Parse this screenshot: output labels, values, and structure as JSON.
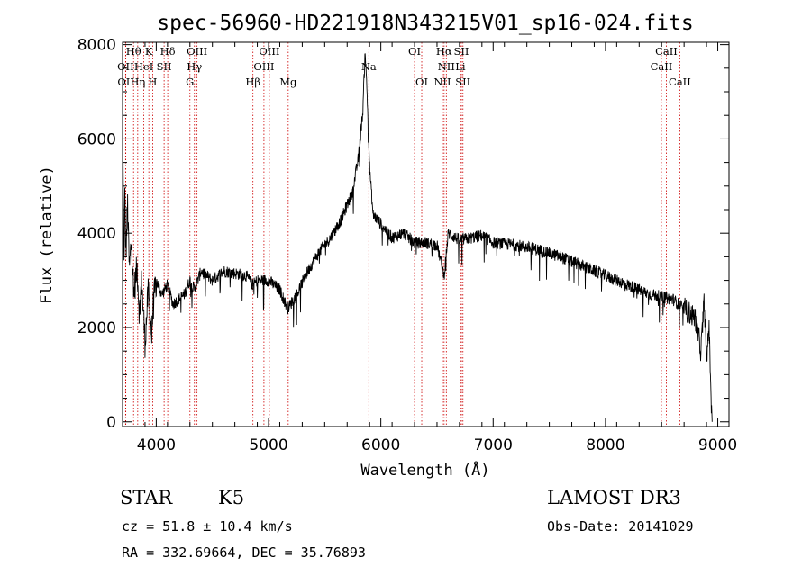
{
  "chart_data": {
    "type": "line",
    "title": "spec-56960-HD221918N343215V01_sp16-024.fits",
    "xlabel": "Wavelength (Å)",
    "ylabel": "Flux (relative)",
    "xlim": [
      3700,
      9100
    ],
    "ylim": [
      -100,
      8050
    ],
    "x_ticks": [
      4000,
      5000,
      6000,
      7000,
      8000,
      9000
    ],
    "x_tick_labels": [
      "4000",
      "5000",
      "6000",
      "7000",
      "8000",
      "9000"
    ],
    "y_ticks": [
      0,
      2000,
      4000,
      6000,
      8000
    ],
    "y_tick_labels": [
      "0",
      "2000",
      "4000",
      "6000",
      "8000"
    ],
    "series": [
      {
        "name": "flux",
        "anchors": [
          [
            3700,
            0
          ],
          [
            3705,
            5500
          ],
          [
            3712,
            3200
          ],
          [
            3720,
            4800
          ],
          [
            3730,
            3600
          ],
          [
            3745,
            4600
          ],
          [
            3760,
            3200
          ],
          [
            3780,
            3900
          ],
          [
            3800,
            2700
          ],
          [
            3830,
            3300
          ],
          [
            3850,
            2300
          ],
          [
            3870,
            3000
          ],
          [
            3900,
            1700
          ],
          [
            3930,
            2800
          ],
          [
            3960,
            1800
          ],
          [
            3970,
            2400
          ],
          [
            4000,
            3000
          ],
          [
            4050,
            2700
          ],
          [
            4100,
            2900
          ],
          [
            4150,
            2500
          ],
          [
            4200,
            2600
          ],
          [
            4250,
            2700
          ],
          [
            4300,
            3000
          ],
          [
            4340,
            2800
          ],
          [
            4400,
            3200
          ],
          [
            4500,
            3000
          ],
          [
            4600,
            3200
          ],
          [
            4700,
            3150
          ],
          [
            4800,
            3100
          ],
          [
            4860,
            2900
          ],
          [
            4900,
            3000
          ],
          [
            5000,
            3000
          ],
          [
            5100,
            2800
          ],
          [
            5170,
            2400
          ],
          [
            5250,
            2700
          ],
          [
            5350,
            3200
          ],
          [
            5450,
            3600
          ],
          [
            5550,
            3900
          ],
          [
            5650,
            4300
          ],
          [
            5750,
            4900
          ],
          [
            5800,
            5600
          ],
          [
            5840,
            6600
          ],
          [
            5860,
            7900
          ],
          [
            5880,
            6800
          ],
          [
            5900,
            5400
          ],
          [
            5930,
            4400
          ],
          [
            6000,
            4200
          ],
          [
            6100,
            3900
          ],
          [
            6200,
            4000
          ],
          [
            6300,
            3800
          ],
          [
            6400,
            3800
          ],
          [
            6500,
            3750
          ],
          [
            6563,
            3100
          ],
          [
            6600,
            4000
          ],
          [
            6700,
            3850
          ],
          [
            6800,
            3900
          ],
          [
            6900,
            3950
          ],
          [
            7000,
            3800
          ],
          [
            7200,
            3750
          ],
          [
            7400,
            3650
          ],
          [
            7600,
            3500
          ],
          [
            7800,
            3300
          ],
          [
            8000,
            3100
          ],
          [
            8200,
            2900
          ],
          [
            8400,
            2700
          ],
          [
            8500,
            2650
          ],
          [
            8600,
            2600
          ],
          [
            8700,
            2400
          ],
          [
            8800,
            2200
          ],
          [
            8850,
            1500
          ],
          [
            8880,
            2600
          ],
          [
            8900,
            1200
          ],
          [
            8920,
            2100
          ],
          [
            8950,
            0
          ]
        ]
      }
    ],
    "spectral_lines": [
      {
        "label": "Hθ",
        "wavelength": 3798,
        "row": 1
      },
      {
        "label": "OII",
        "wavelength": 3727,
        "row": 2
      },
      {
        "label": "OII",
        "wavelength": 3729,
        "row": 3
      },
      {
        "label": "K",
        "wavelength": 3934,
        "row": 1
      },
      {
        "label": "HeI",
        "wavelength": 3889,
        "row": 2
      },
      {
        "label": "Hη",
        "wavelength": 3835,
        "row": 3
      },
      {
        "label": "Hδ",
        "wavelength": 4102,
        "row": 1
      },
      {
        "label": "SII",
        "wavelength": 4070,
        "row": 2
      },
      {
        "label": "H",
        "wavelength": 3968,
        "row": 3
      },
      {
        "label": "OIII",
        "wavelength": 4363,
        "row": 1
      },
      {
        "label": "Hγ",
        "wavelength": 4340,
        "row": 2
      },
      {
        "label": "G",
        "wavelength": 4300,
        "row": 3
      },
      {
        "label": "Hβ",
        "wavelength": 4861,
        "row": 3
      },
      {
        "label": "OIII",
        "wavelength": 5007,
        "row": 1
      },
      {
        "label": "OIII",
        "wavelength": 4959,
        "row": 2
      },
      {
        "label": "Mg",
        "wavelength": 5175,
        "row": 3
      },
      {
        "label": "Na",
        "wavelength": 5893,
        "row": 2
      },
      {
        "label": "OI",
        "wavelength": 6300,
        "row": 1
      },
      {
        "label": "OI",
        "wavelength": 6364,
        "row": 3
      },
      {
        "label": "Hα",
        "wavelength": 6563,
        "row": 1
      },
      {
        "label": "NII",
        "wavelength": 6583,
        "row": 2
      },
      {
        "label": "NII",
        "wavelength": 6548,
        "row": 3
      },
      {
        "label": "SII",
        "wavelength": 6717,
        "row": 1
      },
      {
        "label": "Li",
        "wavelength": 6708,
        "row": 2
      },
      {
        "label": "SII",
        "wavelength": 6731,
        "row": 3
      },
      {
        "label": "CaII",
        "wavelength": 8542,
        "row": 1
      },
      {
        "label": "CaII",
        "wavelength": 8498,
        "row": 2
      },
      {
        "label": "CaII",
        "wavelength": 8662,
        "row": 3
      }
    ]
  },
  "info": {
    "object_class": "STAR",
    "subclass": "K5",
    "survey": "LAMOST DR3",
    "cz": "cz = 51.8 ± 10.4 km/s",
    "obs_date": "Obs-Date: 20141029",
    "coords": "RA = 332.69664, DEC =  35.76893"
  },
  "colors": {
    "line_color": "#000000",
    "marker_color": "#cc0000",
    "background": "#ffffff"
  }
}
